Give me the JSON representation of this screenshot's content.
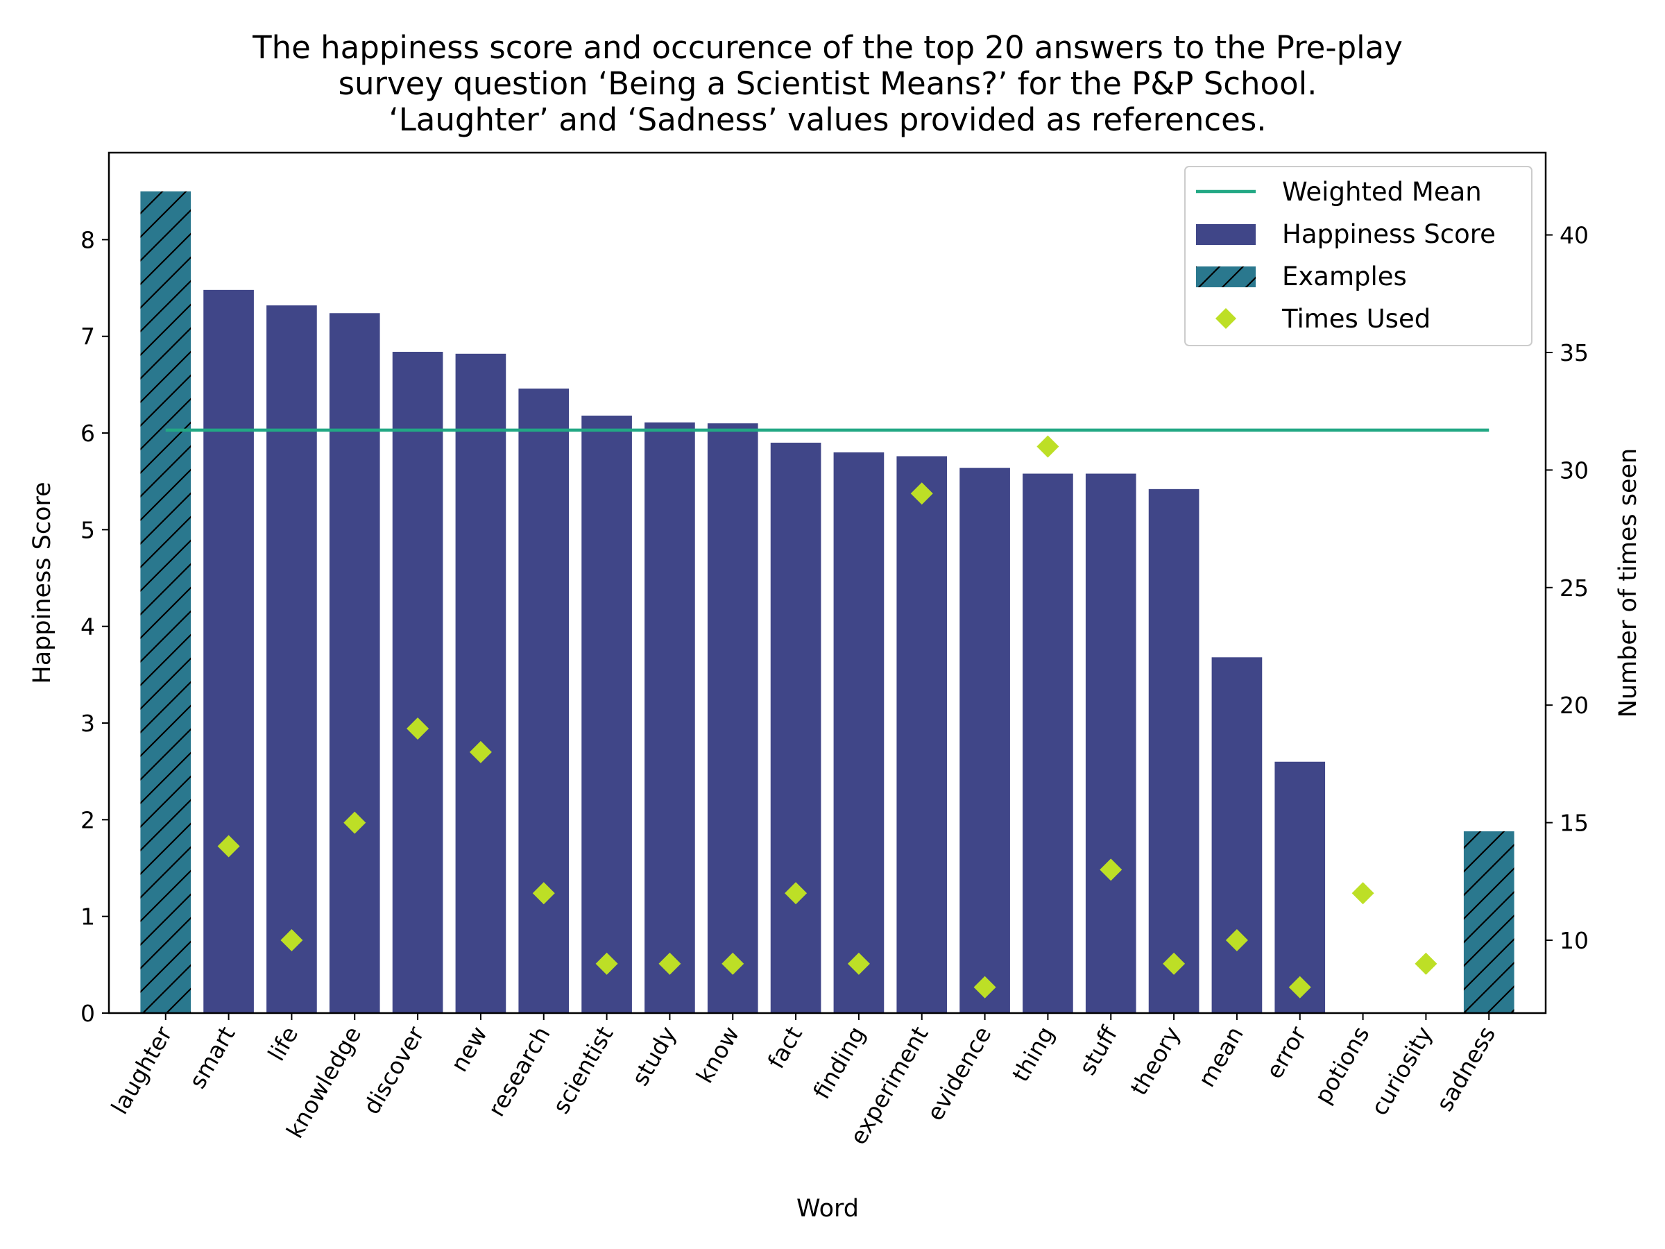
{
  "chart_data": {
    "type": "bar",
    "title_lines": [
      "The happiness score and occurence of the top 20 answers to the Pre-play",
      "survey question ‘Being a Scientist Means?’ for the P&P School.",
      "‘Laughter’ and ‘Sadness’ values provided as references."
    ],
    "xlabel": "Word",
    "ylabel": "Happiness Score",
    "y2label": "Number of times seen",
    "ylim": [
      0,
      8.9
    ],
    "y2lim": [
      6.9,
      43.5
    ],
    "yticks": [
      0,
      1,
      2,
      3,
      4,
      5,
      6,
      7,
      8
    ],
    "y2ticks": [
      10,
      15,
      20,
      25,
      30,
      35,
      40
    ],
    "categories": [
      "laughter",
      "smart",
      "life",
      "knowledge",
      "discover",
      "new",
      "research",
      "scientist",
      "study",
      "know",
      "fact",
      "finding",
      "experiment",
      "evidence",
      "thing",
      "stuff",
      "theory",
      "mean",
      "error",
      "potions",
      "curiosity",
      "sadness"
    ],
    "happiness": [
      8.5,
      7.48,
      7.32,
      7.24,
      6.84,
      6.82,
      6.46,
      6.18,
      6.11,
      6.1,
      5.9,
      5.8,
      5.76,
      5.64,
      5.58,
      5.58,
      5.42,
      3.68,
      2.6,
      null,
      null,
      1.88
    ],
    "example_words": [
      "laughter",
      "sadness"
    ],
    "times_used": [
      null,
      14,
      10,
      15,
      19,
      18,
      12,
      9,
      9,
      9,
      12,
      9,
      29,
      8,
      31,
      13,
      9,
      10,
      8,
      12,
      9,
      null
    ],
    "weighted_mean": 6.03,
    "weighted_mean_range": [
      "laughter",
      "sadness"
    ],
    "legend": {
      "position": "top-right",
      "entries": [
        {
          "label": "Weighted Mean",
          "kind": "line"
        },
        {
          "label": "Happiness Score",
          "kind": "bar"
        },
        {
          "label": "Examples",
          "kind": "hatched-bar"
        },
        {
          "label": "Times Used",
          "kind": "diamond"
        }
      ]
    },
    "colors": {
      "bar": "#404688",
      "example": "#2a788e",
      "mean_line": "#22a884",
      "marker": "#bddf26",
      "axes": "#000000"
    },
    "grid": false
  }
}
